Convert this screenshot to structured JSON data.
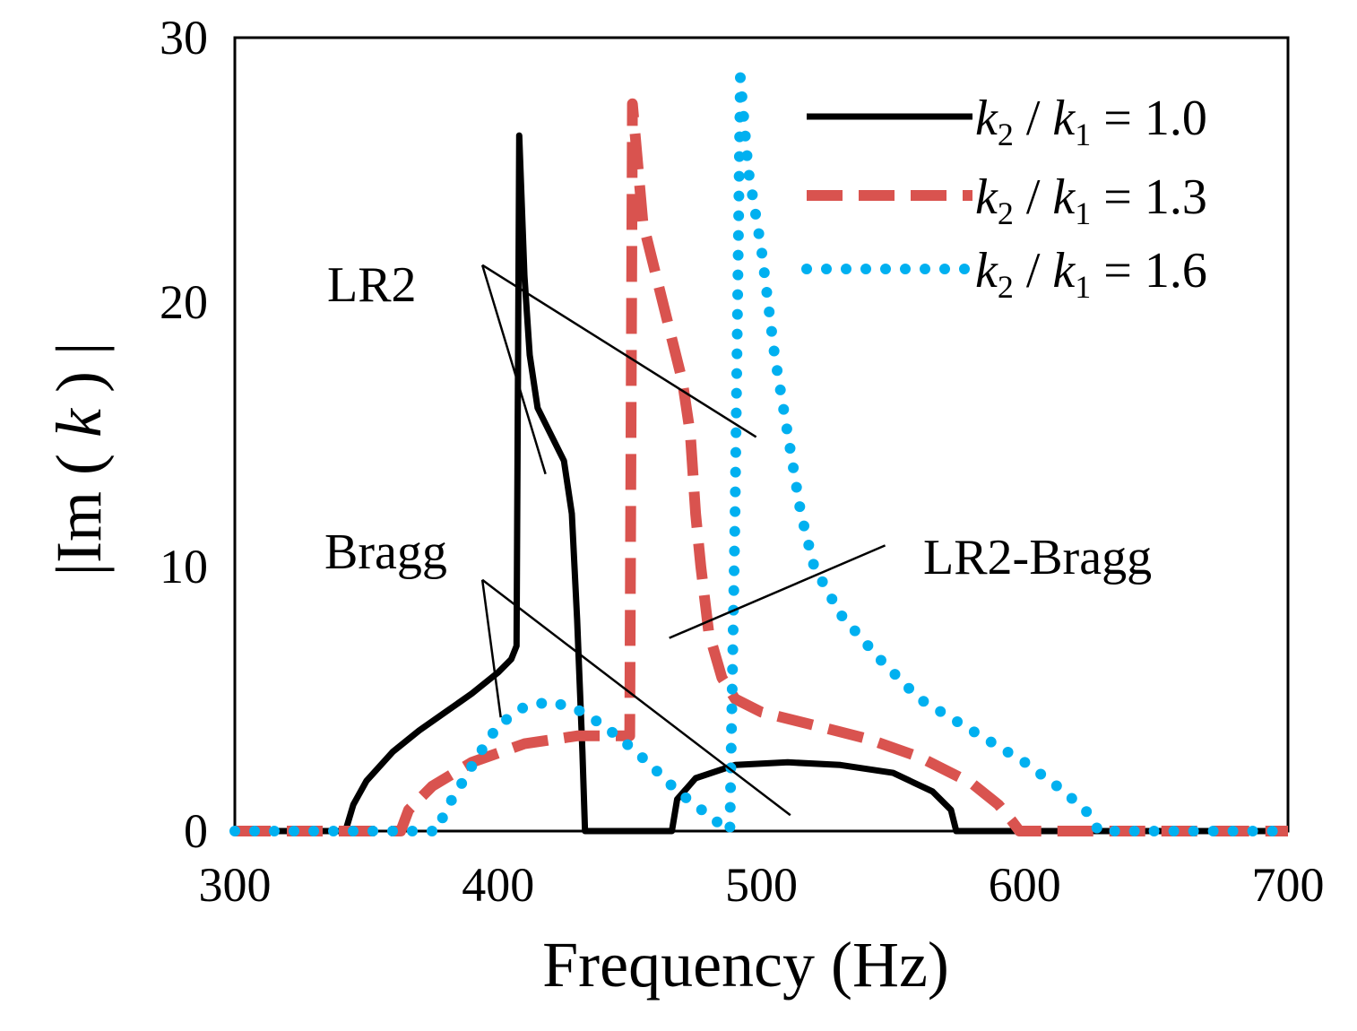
{
  "chart_data": {
    "type": "line",
    "xlabel": "Frequency (Hz)",
    "ylabel_parts": [
      "|Im (",
      "k",
      ") |"
    ],
    "xlim": [
      300,
      700
    ],
    "ylim": [
      0,
      30
    ],
    "xticks": [
      300,
      400,
      500,
      600,
      700
    ],
    "yticks": [
      0,
      10,
      20,
      30
    ],
    "grid": false,
    "legend_position": "top-right",
    "series": [
      {
        "name": "k2 / k1 = 1.0",
        "legend": {
          "k": "k",
          "sub_a": "2",
          "slash": " / ",
          "sub_b": "1",
          "rest": " = 1.0"
        },
        "color": "#000000",
        "style": "solid",
        "points": [
          [
            300,
            0
          ],
          [
            342,
            0
          ],
          [
            345,
            1
          ],
          [
            350,
            1.9
          ],
          [
            360,
            3.0
          ],
          [
            370,
            3.8
          ],
          [
            380,
            4.5
          ],
          [
            390,
            5.2
          ],
          [
            400,
            6.0
          ],
          [
            405,
            6.5
          ],
          [
            407,
            7
          ],
          [
            408,
            26.3
          ],
          [
            410,
            21
          ],
          [
            412,
            18
          ],
          [
            415,
            16
          ],
          [
            420,
            15
          ],
          [
            425,
            14
          ],
          [
            428,
            12
          ],
          [
            430,
            8
          ],
          [
            432,
            3
          ],
          [
            433,
            0
          ],
          [
            466,
            0
          ],
          [
            468,
            1.2
          ],
          [
            475,
            2.0
          ],
          [
            490,
            2.5
          ],
          [
            510,
            2.6
          ],
          [
            530,
            2.5
          ],
          [
            550,
            2.2
          ],
          [
            565,
            1.5
          ],
          [
            572,
            0.8
          ],
          [
            574,
            0
          ],
          [
            700,
            0
          ]
        ]
      },
      {
        "name": "k2 / k1 = 1.3",
        "legend": {
          "k": "k",
          "sub_a": "2",
          "slash": " / ",
          "sub_b": "1",
          "rest": " = 1.3"
        },
        "color": "#d9534f",
        "style": "dashed",
        "points": [
          [
            300,
            0
          ],
          [
            363,
            0
          ],
          [
            366,
            0.8
          ],
          [
            375,
            1.7
          ],
          [
            390,
            2.6
          ],
          [
            410,
            3.3
          ],
          [
            430,
            3.6
          ],
          [
            450,
            3.6
          ],
          [
            451,
            27.5
          ],
          [
            455,
            23
          ],
          [
            460,
            21
          ],
          [
            465,
            19
          ],
          [
            470,
            17
          ],
          [
            473,
            15
          ],
          [
            475,
            12
          ],
          [
            477,
            10
          ],
          [
            480,
            7.5
          ],
          [
            485,
            5.8
          ],
          [
            490,
            5.0
          ],
          [
            500,
            4.5
          ],
          [
            520,
            4.0
          ],
          [
            540,
            3.5
          ],
          [
            560,
            2.8
          ],
          [
            580,
            1.8
          ],
          [
            590,
            1.0
          ],
          [
            595,
            0.4
          ],
          [
            598,
            0
          ],
          [
            700,
            0
          ]
        ]
      },
      {
        "name": "k2 / k1 = 1.6",
        "legend": {
          "k": "k",
          "sub_a": "2",
          "slash": " / ",
          "sub_b": "1",
          "rest": " = 1.6"
        },
        "color": "#00b0f0",
        "style": "dotted",
        "points": [
          [
            300,
            0
          ],
          [
            377,
            0
          ],
          [
            380,
            0.8
          ],
          [
            385,
            1.6
          ],
          [
            392,
            2.8
          ],
          [
            400,
            4.0
          ],
          [
            410,
            4.7
          ],
          [
            420,
            4.9
          ],
          [
            430,
            4.6
          ],
          [
            440,
            4.0
          ],
          [
            450,
            3.2
          ],
          [
            458,
            2.5
          ],
          [
            465,
            1.8
          ],
          [
            472,
            1.2
          ],
          [
            480,
            0.6
          ],
          [
            485,
            0.2
          ],
          [
            488,
            0
          ],
          [
            490,
            12
          ],
          [
            492,
            28.5
          ],
          [
            495,
            25
          ],
          [
            500,
            22
          ],
          [
            505,
            18
          ],
          [
            510,
            15
          ],
          [
            515,
            12
          ],
          [
            520,
            10
          ],
          [
            530,
            8.2
          ],
          [
            545,
            6.5
          ],
          [
            560,
            5.0
          ],
          [
            580,
            3.8
          ],
          [
            600,
            2.6
          ],
          [
            615,
            1.5
          ],
          [
            625,
            0.6
          ],
          [
            628,
            0
          ],
          [
            700,
            0
          ]
        ]
      }
    ],
    "annotations": [
      {
        "text": "LR2",
        "anchor": [
          394,
          21.4
        ],
        "targets": [
          [
            418,
            13.5
          ],
          [
            498,
            14.9
          ]
        ]
      },
      {
        "text": "Bragg",
        "anchor": [
          394,
          9.5
        ],
        "targets": [
          [
            401,
            4.3
          ],
          [
            511,
            0.6
          ]
        ]
      },
      {
        "text": "LR2-Bragg",
        "anchor": [
          547,
          10.8
        ],
        "targets": [
          [
            465,
            7.3
          ]
        ]
      }
    ]
  }
}
